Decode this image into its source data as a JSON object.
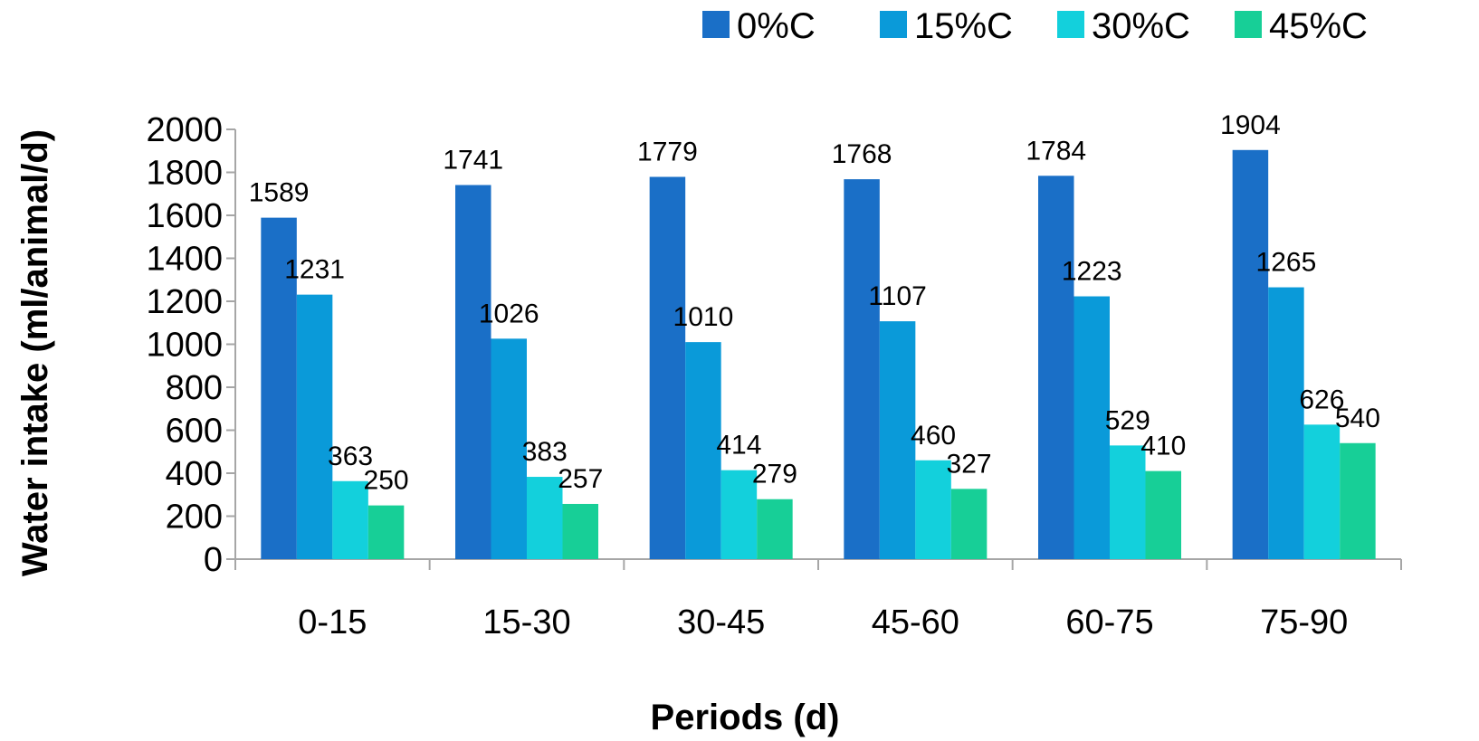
{
  "chart_data": {
    "type": "bar",
    "title": "",
    "xlabel": "Periods (d)",
    "ylabel": "Water intake (ml/animal/d)",
    "categories": [
      "0-15",
      "15-30",
      "30-45",
      "45-60",
      "60-75",
      "75-90"
    ],
    "series": [
      {
        "name": "0%C",
        "color": "#1a6fc7",
        "values": [
          1589,
          1741,
          1779,
          1768,
          1784,
          1904
        ]
      },
      {
        "name": "15%C",
        "color": "#0a9ad9",
        "values": [
          1231,
          1026,
          1010,
          1107,
          1223,
          1265
        ]
      },
      {
        "name": "30%C",
        "color": "#13d0dc",
        "values": [
          363,
          383,
          414,
          460,
          529,
          626
        ]
      },
      {
        "name": "45%C",
        "color": "#17cf97",
        "values": [
          250,
          257,
          279,
          327,
          410,
          540
        ]
      }
    ],
    "ylim": [
      0,
      2000
    ],
    "yticks": [
      0,
      200,
      400,
      600,
      800,
      1000,
      1200,
      1400,
      1600,
      1800,
      2000
    ],
    "grid": false,
    "legend_position": "top-right",
    "data_labels": true
  }
}
